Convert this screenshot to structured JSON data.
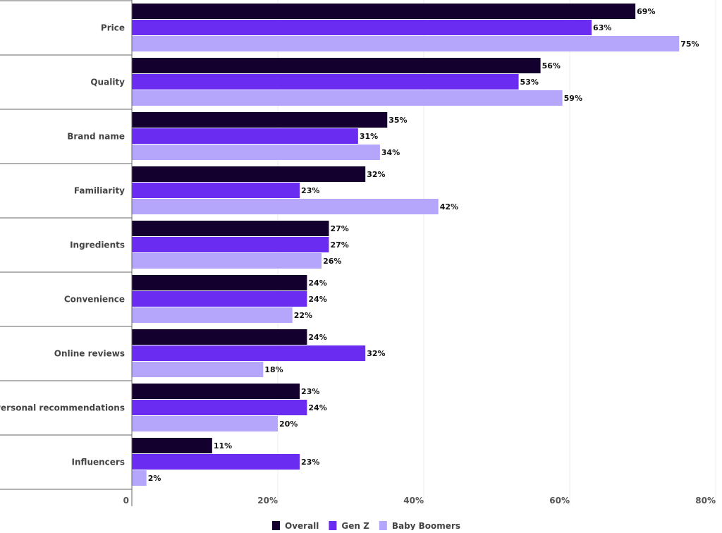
{
  "chart_data": {
    "type": "bar",
    "orientation": "horizontal",
    "categories": [
      "Price",
      "Quality",
      "Brand name",
      "Familiarity",
      "Ingredients",
      "Convenience",
      "Online reviews",
      "Personal recommendations",
      "Influencers"
    ],
    "series": [
      {
        "name": "Overall",
        "color": "#14002e",
        "values": [
          69,
          56,
          35,
          32,
          27,
          24,
          24,
          23,
          11
        ]
      },
      {
        "name": "Gen Z",
        "color": "#6a2cf0",
        "values": [
          63,
          53,
          31,
          23,
          27,
          24,
          32,
          24,
          23
        ]
      },
      {
        "name": "Baby Boomers",
        "color": "#b6a6fb",
        "values": [
          75,
          59,
          34,
          42,
          26,
          22,
          18,
          20,
          2
        ]
      }
    ],
    "xlim": [
      0,
      80
    ],
    "xticks": [
      0,
      20,
      40,
      60,
      80
    ],
    "xtick_labels": [
      "0",
      "20%",
      "40%",
      "60%",
      "80%"
    ],
    "grid": "vertical",
    "legend": "bottom-center",
    "value_suffix": "%"
  }
}
